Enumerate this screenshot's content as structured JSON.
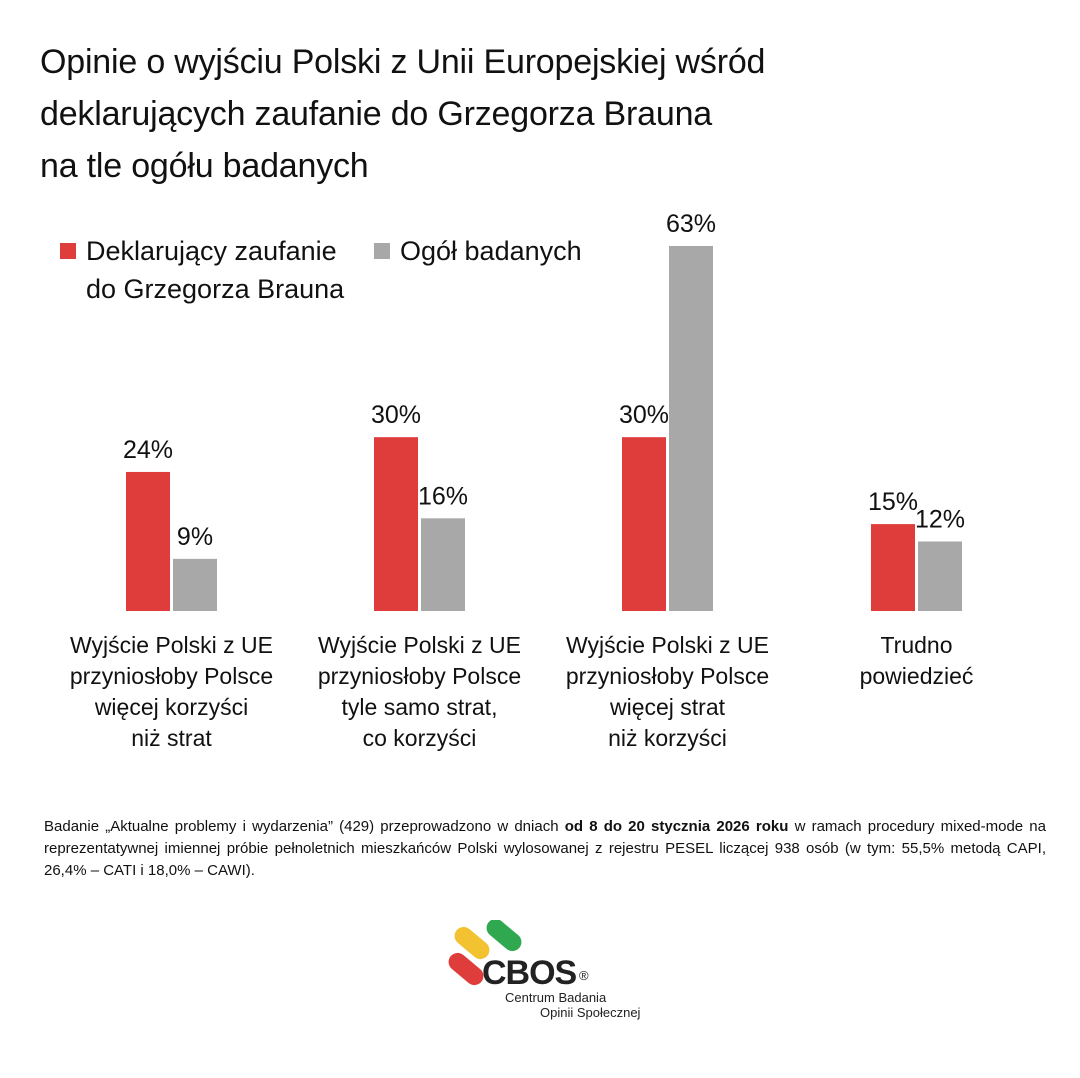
{
  "title_lines": [
    "Opinie o wyjściu Polski z Unii Europejskiej wśród",
    "deklarujących zaufanie do Grzegorza Brauna",
    "na tle ogółu badanych"
  ],
  "legend": {
    "series1_lines": [
      "Deklarujący zaufanie",
      "do Grzegorza Brauna"
    ],
    "series2": "Ogół badanych"
  },
  "chart_data": {
    "type": "bar",
    "title": "Opinie o wyjściu Polski z Unii Europejskiej wśród deklarujących zaufanie do Grzegorza Brauna na tle ogółu badanych",
    "categories": [
      "Wyjście Polski z UE przyniosłoby Polsce więcej korzyści niż strat",
      "Wyjście Polski z UE przyniosłoby Polsce tyle samo strat, co korzyści",
      "Wyjście Polski z UE przyniosłoby Polsce więcej strat niż korzyści",
      "Trudno powiedzieć"
    ],
    "category_lines": [
      [
        "Wyjście Polski z UE",
        "przyniosłoby Polsce",
        "więcej korzyści",
        "niż strat"
      ],
      [
        "Wyjście Polski z UE",
        "przyniosłoby Polsce",
        "tyle samo strat,",
        "co korzyści"
      ],
      [
        "Wyjście Polski z UE",
        "przyniosłoby Polsce",
        "więcej strat",
        "niż korzyści"
      ],
      [
        "Trudno",
        "powiedzieć"
      ]
    ],
    "series": [
      {
        "name": "Deklarujący zaufanie do Grzegorza Brauna",
        "values": [
          24,
          30,
          30,
          15
        ],
        "color": "#df3c3c"
      },
      {
        "name": "Ogół badanych",
        "values": [
          9,
          16,
          63,
          12
        ],
        "color": "#a8a8a8"
      }
    ],
    "value_suffix": "%",
    "ylim": [
      0,
      70
    ],
    "grid": false,
    "legend_position": "top-left"
  },
  "note": {
    "part1": "Badanie „Aktualne problemy i wydarzenia” (429) przeprowadzono w dniach ",
    "bold": "od 8 do 20 stycznia 2026 roku",
    "part2": " w ramach procedury mixed-mode na reprezentatywnej imiennej próbie pełnoletnich mieszkańców Polski wylosowanej z rejestru PESEL liczącej 938 osób (w tym: 55,5% metodą CAPI, 26,4% – CATI i 18,0% – CAWI)."
  },
  "logo": {
    "name": "CBOS",
    "registered": "®",
    "sub1": "Centrum Badania",
    "sub2": "Opinii Społecznej",
    "colors": [
      "#f2c230",
      "#2fa84f",
      "#df3c3c"
    ]
  }
}
